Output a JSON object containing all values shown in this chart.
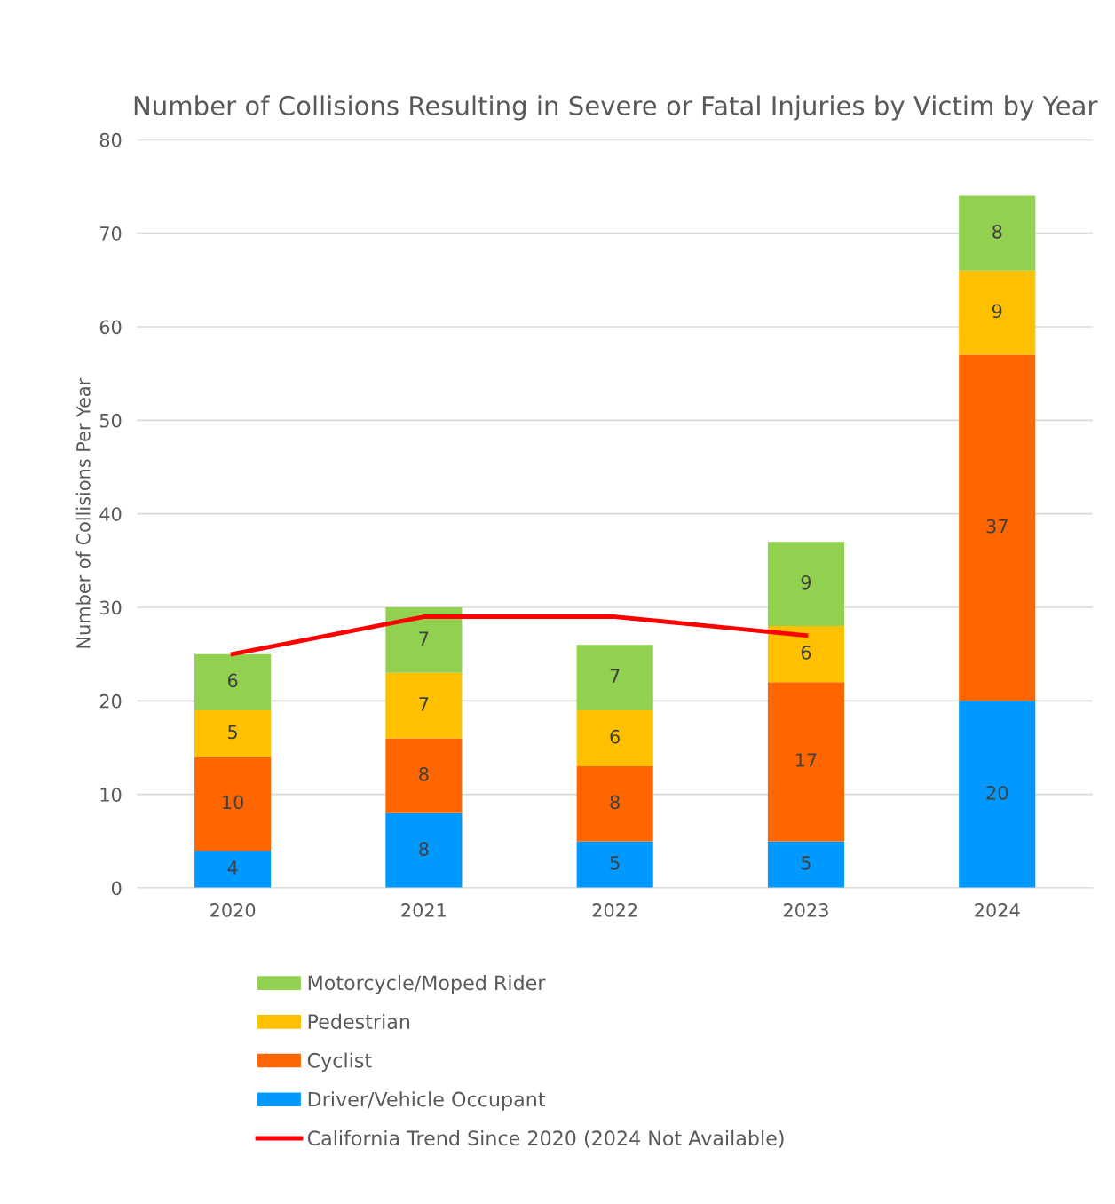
{
  "chart_data": {
    "type": "bar",
    "title": "Number of Collisions Resulting in Severe or Fatal Injuries by Victim by Year",
    "ylabel": "Number of Collisions Per Year",
    "categories": [
      "2020",
      "2021",
      "2022",
      "2023",
      "2024"
    ],
    "stacked": true,
    "ylim": [
      0,
      80
    ],
    "yticks": [
      0,
      10,
      20,
      30,
      40,
      50,
      60,
      70,
      80
    ],
    "grid": "y",
    "legend": "bottom",
    "series": [
      {
        "name": "Driver/Vehicle Occupant",
        "color": "#0099ff",
        "values": [
          4,
          8,
          5,
          5,
          20
        ],
        "value_labels": [
          "4",
          "8",
          "5",
          "5",
          "20"
        ]
      },
      {
        "name": "Cyclist",
        "color": "#ff6600",
        "values": [
          10,
          8,
          8,
          17,
          37
        ],
        "value_labels": [
          "10",
          "8",
          "8",
          "17",
          "37"
        ]
      },
      {
        "name": "Pedestrian",
        "color": "#ffc000",
        "values": [
          5,
          7,
          6,
          6,
          9
        ],
        "value_labels": [
          "5",
          "7",
          "6",
          "6",
          "9"
        ]
      },
      {
        "name": "Motorcycle/Moped Rider",
        "color": "#92d050",
        "values": [
          6,
          7,
          7,
          9,
          8
        ],
        "value_labels": [
          "6",
          "7",
          "7",
          "9",
          "8"
        ]
      },
      {
        "name": "California Trend Since 2020 (2024 Not Available)",
        "type": "line",
        "color": "#ff0000",
        "values": [
          25,
          29,
          29,
          27,
          null
        ]
      }
    ]
  }
}
